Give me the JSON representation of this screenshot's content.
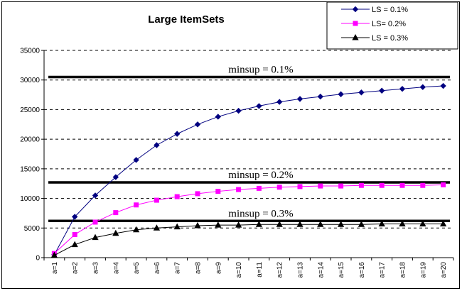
{
  "chart_data": {
    "type": "line",
    "title": "Large ItemSets",
    "xlabel": "",
    "ylabel": "",
    "categories": [
      "a=1",
      "a=2",
      "a=3",
      "a=4",
      "a=5",
      "a=6",
      "a=7",
      "a=8",
      "a=9",
      "a=10",
      "a=11",
      "a=12",
      "a=13",
      "a=14",
      "a=15",
      "a=16",
      "a=17",
      "a=18",
      "a=19",
      "a=20"
    ],
    "ylim": [
      0,
      35000
    ],
    "yticks": [
      "0",
      "5000",
      "10000",
      "15000",
      "20000",
      "25000",
      "30000",
      "35000"
    ],
    "grid": "horizontal-dashed",
    "legend_position": "top-right",
    "series": [
      {
        "name": "LS = 0.1%",
        "color": "#000080",
        "marker": "diamond",
        "values": [
          500,
          6900,
          10500,
          13600,
          16500,
          19000,
          20900,
          22500,
          23800,
          24800,
          25600,
          26300,
          26800,
          27200,
          27600,
          27900,
          28200,
          28500,
          28800,
          29000
        ]
      },
      {
        "name": "LS= 0.2%",
        "color": "#ff00ff",
        "marker": "square",
        "values": [
          700,
          3900,
          6000,
          7600,
          8900,
          9700,
          10300,
          10800,
          11200,
          11500,
          11700,
          11900,
          12000,
          12100,
          12100,
          12200,
          12200,
          12200,
          12200,
          12300
        ]
      },
      {
        "name": "LS = 0.3%",
        "color": "#000000",
        "marker": "triangle",
        "values": [
          400,
          2200,
          3400,
          4100,
          4700,
          5000,
          5200,
          5400,
          5500,
          5500,
          5600,
          5600,
          5600,
          5600,
          5600,
          5600,
          5700,
          5700,
          5700,
          5700
        ]
      }
    ],
    "reference_lines": [
      {
        "label": "minsup = 0.1%",
        "value": 30500
      },
      {
        "label": "minsup = 0.2%",
        "value": 12700
      },
      {
        "label": "minsup = 0.3%",
        "value": 6200
      }
    ]
  }
}
